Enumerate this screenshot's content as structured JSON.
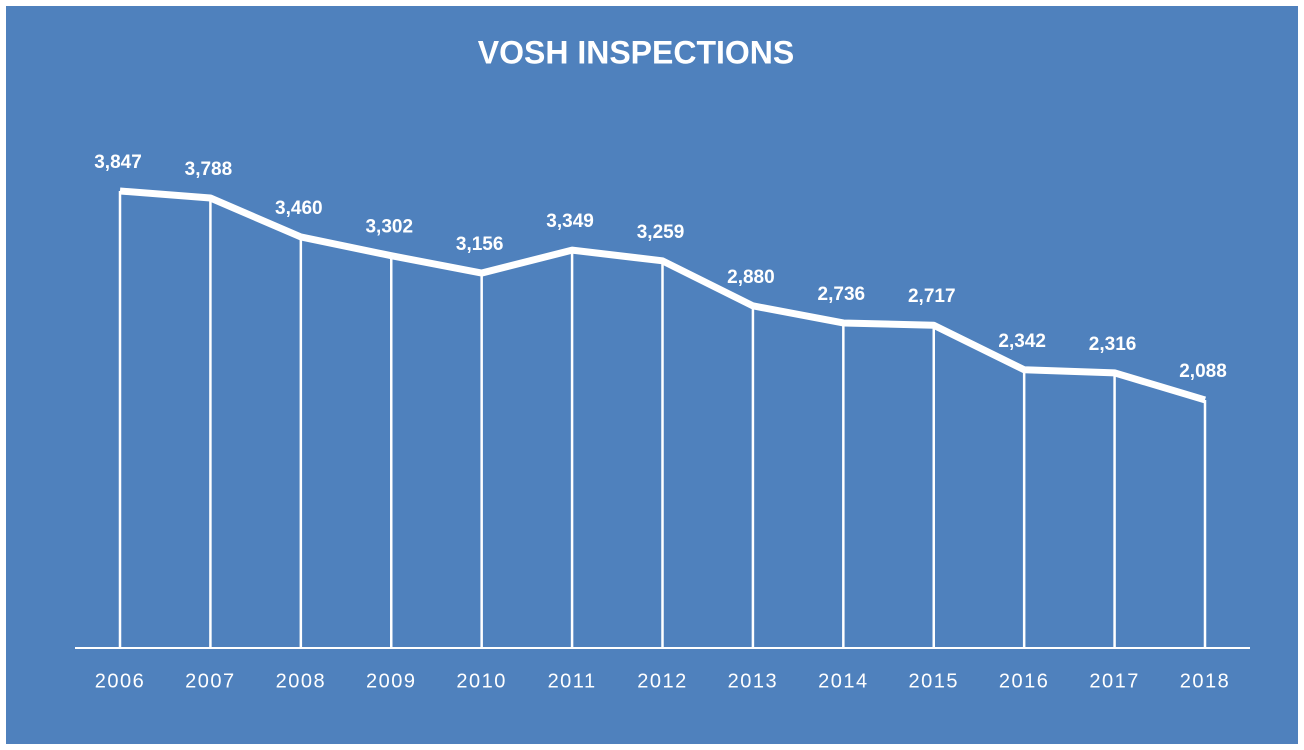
{
  "chart_data": {
    "type": "line",
    "title": "VOSH INSPECTIONS",
    "categories": [
      "2006",
      "2007",
      "2008",
      "2009",
      "2010",
      "2011",
      "2012",
      "2013",
      "2014",
      "2015",
      "2016",
      "2017",
      "2018"
    ],
    "values": [
      3847,
      3788,
      3460,
      3302,
      3156,
      3349,
      3259,
      2880,
      2736,
      2717,
      2342,
      2316,
      2088
    ],
    "value_labels": [
      "3,847",
      "3,788",
      "3,460",
      "3,302",
      "3,156",
      "3,349",
      "3,259",
      "2,880",
      "2,736",
      "2,717",
      "2,342",
      "2,316",
      "2,088"
    ],
    "color": "#ffffff",
    "background": "#4f81bd",
    "ylim": [
      0,
      4500
    ]
  }
}
